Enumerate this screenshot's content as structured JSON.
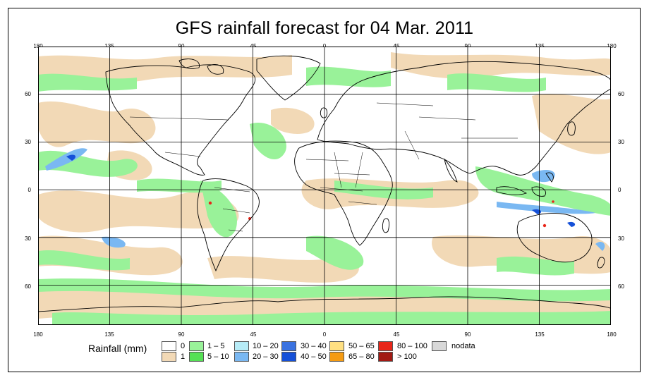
{
  "title": "GFS rainfall forecast for 04 Mar. 2011",
  "lon_ticks": [
    "180",
    "135",
    "90",
    "45",
    "0",
    "45",
    "90",
    "135",
    "180"
  ],
  "lat_ticks": [
    "60",
    "30",
    "0",
    "30",
    "60"
  ],
  "legend": {
    "title": "Rainfall (mm)",
    "items": [
      {
        "label": "0",
        "color": "#ffffff"
      },
      {
        "label": "1",
        "color": "#f2d9b6"
      },
      {
        "label": "1 – 5",
        "color": "#99f299"
      },
      {
        "label": "5 – 10",
        "color": "#55e055"
      },
      {
        "label": "10 – 20",
        "color": "#b7ecf7"
      },
      {
        "label": "20 – 30",
        "color": "#7ab8f2"
      },
      {
        "label": "30 – 40",
        "color": "#3a72e0"
      },
      {
        "label": "40 – 50",
        "color": "#1550d8"
      },
      {
        "label": "50 – 65",
        "color": "#ffe082"
      },
      {
        "label": "65 – 80",
        "color": "#f59b12"
      },
      {
        "label": "80 – 100",
        "color": "#e8261a"
      },
      {
        "label": "> 100",
        "color": "#a21a14"
      },
      {
        "label": "nodata",
        "color": "#d8d8d8"
      }
    ]
  }
}
